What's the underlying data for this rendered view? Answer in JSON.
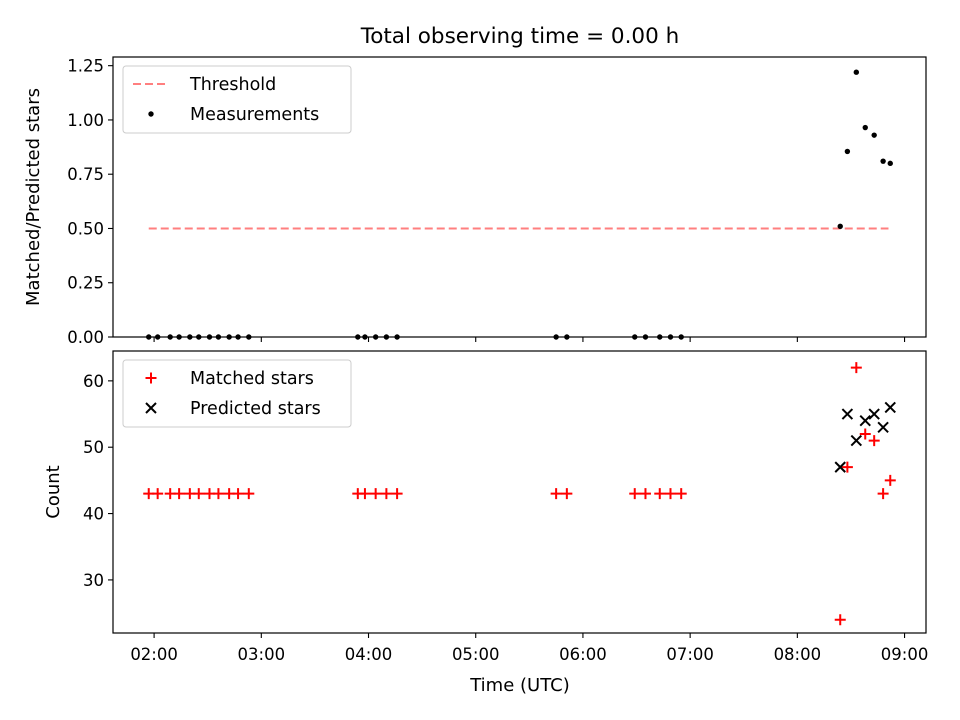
{
  "title": "Total observing time = 0.00 h",
  "xlabel": "Time (UTC)",
  "colors": {
    "threshold": "#ff7f7f",
    "measurements": "#000000",
    "matched": "#ff0000",
    "predicted": "#000000"
  },
  "chart_data": [
    {
      "type": "scatter",
      "ylabel": "Matched/Predicted stars",
      "xlim": [
        "01:37",
        "09:12"
      ],
      "ylim": [
        0.0,
        1.29
      ],
      "x_ticks": [
        "02:00",
        "03:00",
        "04:00",
        "05:00",
        "06:00",
        "07:00",
        "08:00",
        "09:00"
      ],
      "y_ticks": [
        "0.00",
        "0.25",
        "0.50",
        "0.75",
        "1.00",
        "1.25"
      ],
      "legend_position": "top-left",
      "series": [
        {
          "name": "Threshold",
          "style": "dashed-line",
          "points": [
            [
              "01:57",
              0.5
            ],
            [
              "08:51",
              0.5
            ]
          ]
        },
        {
          "name": "Measurements",
          "style": "dot",
          "points": [
            [
              "01:57",
              0.0
            ],
            [
              "02:02",
              0.0
            ],
            [
              "02:09",
              0.0
            ],
            [
              "02:14",
              0.0
            ],
            [
              "02:20",
              0.0
            ],
            [
              "02:25",
              0.0
            ],
            [
              "02:31",
              0.0
            ],
            [
              "02:36",
              0.0
            ],
            [
              "02:42",
              0.0
            ],
            [
              "02:47",
              0.0
            ],
            [
              "02:53",
              0.0
            ],
            [
              "03:54",
              0.0
            ],
            [
              "03:58",
              0.0
            ],
            [
              "04:04",
              0.0
            ],
            [
              "04:10",
              0.0
            ],
            [
              "04:16",
              0.0
            ],
            [
              "05:45",
              0.0
            ],
            [
              "05:51",
              0.0
            ],
            [
              "06:29",
              0.0
            ],
            [
              "06:35",
              0.0
            ],
            [
              "06:43",
              0.0
            ],
            [
              "06:49",
              0.0
            ],
            [
              "06:55",
              0.0
            ],
            [
              "08:24",
              0.51
            ],
            [
              "08:28",
              0.855
            ],
            [
              "08:33",
              1.22
            ],
            [
              "08:38",
              0.965
            ],
            [
              "08:43",
              0.93
            ],
            [
              "08:48",
              0.81
            ],
            [
              "08:52",
              0.8
            ]
          ]
        }
      ]
    },
    {
      "type": "scatter",
      "ylabel": "Count",
      "xlim": [
        "01:37",
        "09:12"
      ],
      "ylim": [
        22,
        64.5
      ],
      "x_ticks": [
        "02:00",
        "03:00",
        "04:00",
        "05:00",
        "06:00",
        "07:00",
        "08:00",
        "09:00"
      ],
      "y_ticks": [
        "30",
        "40",
        "50",
        "60"
      ],
      "legend_position": "top-left",
      "series": [
        {
          "name": "Matched stars",
          "marker": "+",
          "points": [
            [
              "01:57",
              43
            ],
            [
              "02:02",
              43
            ],
            [
              "02:09",
              43
            ],
            [
              "02:14",
              43
            ],
            [
              "02:20",
              43
            ],
            [
              "02:25",
              43
            ],
            [
              "02:31",
              43
            ],
            [
              "02:36",
              43
            ],
            [
              "02:42",
              43
            ],
            [
              "02:47",
              43
            ],
            [
              "02:53",
              43
            ],
            [
              "03:54",
              43
            ],
            [
              "03:58",
              43
            ],
            [
              "04:04",
              43
            ],
            [
              "04:10",
              43
            ],
            [
              "04:16",
              43
            ],
            [
              "05:45",
              43
            ],
            [
              "05:51",
              43
            ],
            [
              "06:29",
              43
            ],
            [
              "06:35",
              43
            ],
            [
              "06:43",
              43
            ],
            [
              "06:49",
              43
            ],
            [
              "06:55",
              43
            ],
            [
              "08:24",
              24
            ],
            [
              "08:28",
              47
            ],
            [
              "08:33",
              62
            ],
            [
              "08:38",
              52
            ],
            [
              "08:43",
              51
            ],
            [
              "08:48",
              43
            ],
            [
              "08:52",
              45
            ]
          ]
        },
        {
          "name": "Predicted stars",
          "marker": "x",
          "points": [
            [
              "08:24",
              47
            ],
            [
              "08:28",
              55
            ],
            [
              "08:33",
              51
            ],
            [
              "08:38",
              54
            ],
            [
              "08:43",
              55
            ],
            [
              "08:48",
              53
            ],
            [
              "08:52",
              56
            ]
          ]
        }
      ]
    }
  ]
}
